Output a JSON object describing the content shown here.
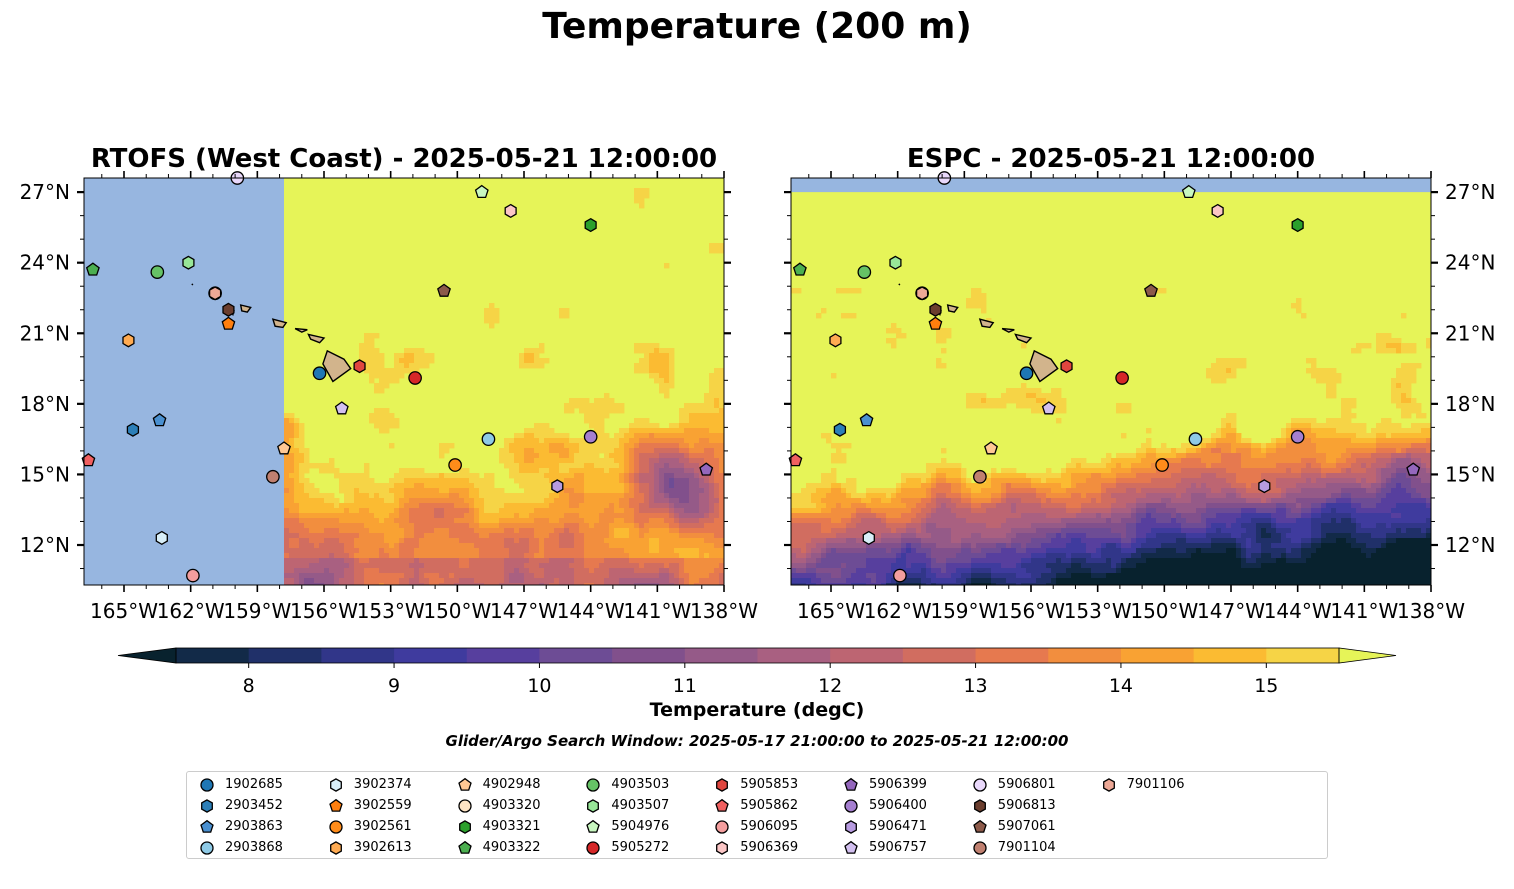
{
  "figure": {
    "title": "Temperature (200 m)",
    "colorbar_label": "Temperature (degC)",
    "search_window": "Glider/Argo Search Window: 2025-05-17 21:00:00 to 2025-05-21 12:00:00"
  },
  "colors": {
    "land_mask": "#97b6e0",
    "island_fill": "#d2b48c",
    "colormap": [
      "#08222e",
      "#122a48",
      "#203069",
      "#313689",
      "#3f3b9e",
      "#573f9e",
      "#6d4c95",
      "#81508c",
      "#955a88",
      "#a96081",
      "#bd6572",
      "#d16d60",
      "#e6794f",
      "#f28e3e",
      "#f9a233",
      "#fbbb32",
      "#f6d446",
      "#e6f458"
    ]
  },
  "chart_data": [
    {
      "type": "contour-map",
      "title": "RTOFS (West Coast) - 2025-05-21 12:00:00",
      "x_ticks": [
        "165°W",
        "162°W",
        "159°W",
        "156°W",
        "153°W",
        "150°W",
        "147°W",
        "144°W",
        "141°W",
        "138°W"
      ],
      "y_ticks": [
        "27°N",
        "24°N",
        "21°N",
        "18°N",
        "15°N",
        "12°N"
      ],
      "x_range": [
        -166.8,
        -138
      ],
      "y_range": [
        10.3,
        27.6
      ],
      "y_tick_side": "left",
      "model_domain_west_edge_lon": -157.8,
      "warm_pool": "north-central",
      "cool_pool": "south-east"
    },
    {
      "type": "contour-map",
      "title": "ESPC - 2025-05-21 12:00:00",
      "x_ticks": [
        "165°W",
        "162°W",
        "159°W",
        "156°W",
        "153°W",
        "150°W",
        "147°W",
        "144°W",
        "141°W",
        "138°W"
      ],
      "y_ticks": [
        "27°N",
        "24°N",
        "21°N",
        "18°N",
        "15°N",
        "12°N"
      ],
      "x_range": [
        -166.8,
        -138
      ],
      "y_range": [
        10.3,
        27.6
      ],
      "y_tick_side": "right",
      "model_domain_north_edge_lat": 27.0,
      "warm_pool": "north",
      "cool_pool": "south"
    }
  ],
  "colorbar": {
    "min": 7.5,
    "max": 15.5,
    "step": 0.5,
    "ticks": [
      "8",
      "9",
      "10",
      "11",
      "12",
      "13",
      "14",
      "15"
    ],
    "extend": "both"
  },
  "floats": [
    {
      "id": "1902685",
      "marker": "circle",
      "color": "#1f77b4",
      "lon": -156.2,
      "lat": 19.3
    },
    {
      "id": "2903452",
      "marker": "hexagon",
      "color": "#2c7fb8",
      "lon": -164.6,
      "lat": 16.9
    },
    {
      "id": "2903863",
      "marker": "pentagon",
      "color": "#4a90d0",
      "lon": -163.4,
      "lat": 17.3
    },
    {
      "id": "2903868",
      "marker": "circle",
      "color": "#8ecae6",
      "lon": -148.6,
      "lat": 16.5
    },
    {
      "id": "3902374",
      "marker": "hexagon",
      "color": "#d8eef8",
      "lon": -163.3,
      "lat": 12.3
    },
    {
      "id": "3902559",
      "marker": "pentagon",
      "color": "#ff7f0e",
      "lon": -160.3,
      "lat": 21.4
    },
    {
      "id": "3902561",
      "marker": "circle",
      "color": "#ff8c1a",
      "lon": -150.1,
      "lat": 15.4
    },
    {
      "id": "3902613",
      "marker": "hexagon",
      "color": "#ffab52",
      "lon": -164.8,
      "lat": 20.7
    },
    {
      "id": "4902948",
      "marker": "pentagon",
      "color": "#ffc894",
      "lon": -157.8,
      "lat": 16.1
    },
    {
      "id": "4903320",
      "marker": "circle",
      "color": "#ffe4c4",
      "lon": -160.9,
      "lat": 22.7
    },
    {
      "id": "4903321",
      "marker": "hexagon",
      "color": "#2ca02c",
      "lon": -144.0,
      "lat": 25.6
    },
    {
      "id": "4903322",
      "marker": "pentagon",
      "color": "#4caf50",
      "lon": -166.4,
      "lat": 23.7
    },
    {
      "id": "4903503",
      "marker": "circle",
      "color": "#66c266",
      "lon": -163.5,
      "lat": 23.6
    },
    {
      "id": "4903507",
      "marker": "hexagon",
      "color": "#98e698",
      "lon": -162.1,
      "lat": 24.0
    },
    {
      "id": "5904976",
      "marker": "pentagon",
      "color": "#c8f7c0",
      "lon": -148.9,
      "lat": 27.0
    },
    {
      "id": "5905272",
      "marker": "circle",
      "color": "#d62728",
      "lon": -151.9,
      "lat": 19.1
    },
    {
      "id": "5905853",
      "marker": "hexagon",
      "color": "#e0463f",
      "lon": -154.4,
      "lat": 19.6
    },
    {
      "id": "5905862",
      "marker": "pentagon",
      "color": "#f06060",
      "lon": -166.6,
      "lat": 15.6
    },
    {
      "id": "5906095",
      "marker": "circle",
      "color": "#f49e9e",
      "lon": -161.9,
      "lat": 10.7
    },
    {
      "id": "5906369",
      "marker": "hexagon",
      "color": "#fbc6c6",
      "lon": -147.6,
      "lat": 26.2
    },
    {
      "id": "5906399",
      "marker": "pentagon",
      "color": "#9467bd",
      "lon": -138.8,
      "lat": 15.2
    },
    {
      "id": "5906400",
      "marker": "circle",
      "color": "#a57fd0",
      "lon": -144.0,
      "lat": 16.6
    },
    {
      "id": "5906471",
      "marker": "hexagon",
      "color": "#b79be0",
      "lon": -145.5,
      "lat": 14.5
    },
    {
      "id": "5906757",
      "marker": "pentagon",
      "color": "#d3c0f0",
      "lon": -155.2,
      "lat": 17.8
    },
    {
      "id": "5906801",
      "marker": "circle",
      "color": "#e9d8fb",
      "lon": -159.9,
      "lat": 27.6
    },
    {
      "id": "5906813",
      "marker": "hexagon",
      "color": "#6b3e2e",
      "lon": -160.3,
      "lat": 22.0
    },
    {
      "id": "5907061",
      "marker": "pentagon",
      "color": "#8c5a4a",
      "lon": -150.6,
      "lat": 22.8
    },
    {
      "id": "7901104",
      "marker": "circle",
      "color": "#c08070",
      "lon": -158.3,
      "lat": 14.9
    },
    {
      "id": "7901106",
      "marker": "hexagon",
      "color": "#eda896",
      "lon": -160.9,
      "lat": 22.7
    }
  ]
}
